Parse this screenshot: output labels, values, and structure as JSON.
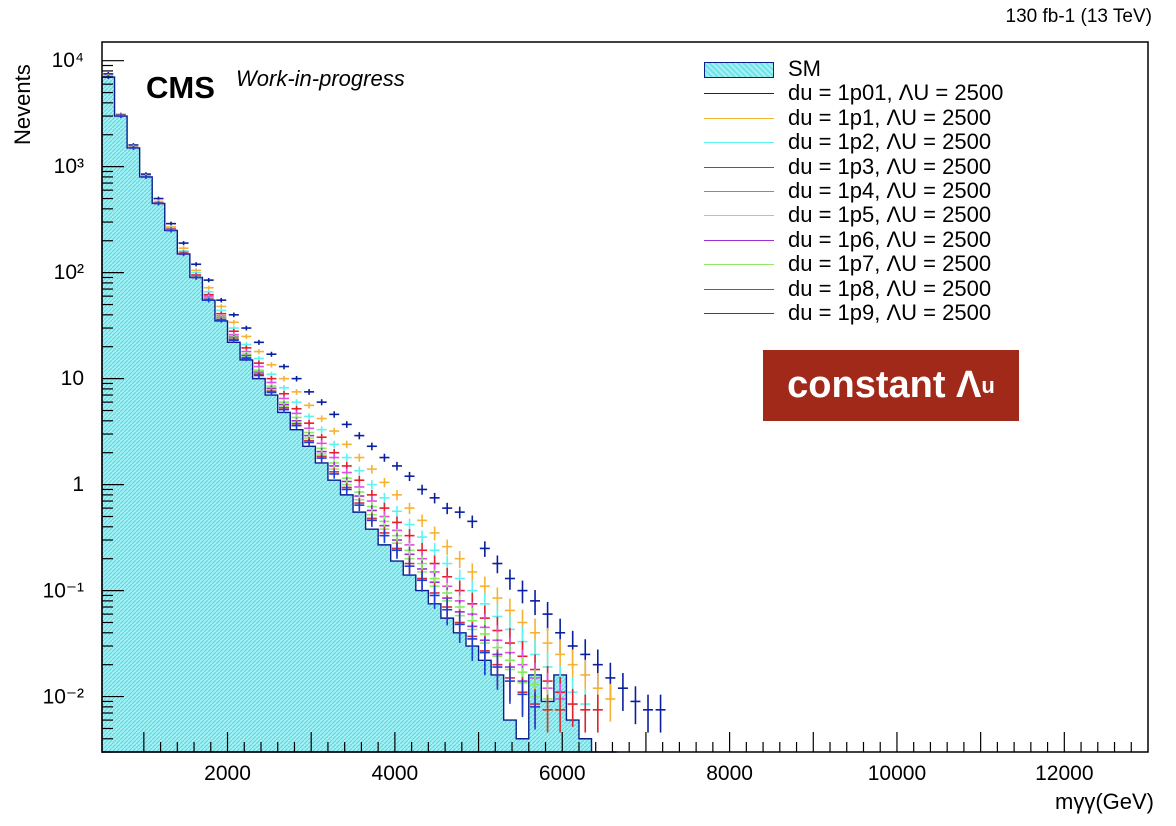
{
  "header": {
    "lumi": "130 fb-1 (13 TeV)",
    "cms": "CMS",
    "status": "Work-in-progress"
  },
  "badge": {
    "text": "constant Λ",
    "sub": "u"
  },
  "colors": {
    "sm_fill": "#7fe8ee",
    "sm_line": "#0a1f8f"
  },
  "chart_data": {
    "type": "line",
    "xlabel": "mγγ(GeV)",
    "ylabel": "Nevents",
    "xlim": [
      500,
      13000
    ],
    "ylim": [
      0.003,
      15000
    ],
    "yscale": "log",
    "grid": false,
    "legend_position": "top-right",
    "x_ticks": [
      "2000",
      "4000",
      "6000",
      "8000",
      "10000",
      "12000"
    ],
    "y_ticks": [
      "10⁴",
      "10³",
      "10²",
      "10",
      "1",
      "10⁻¹",
      "10⁻²"
    ],
    "sm": {
      "name": "SM",
      "bin_width": 150,
      "x_start": 500,
      "values": [
        7000,
        3000,
        1500,
        800,
        450,
        250,
        150,
        90,
        55,
        35,
        22,
        15,
        10,
        7,
        4.8,
        3.3,
        2.3,
        1.6,
        1.1,
        0.8,
        0.55,
        0.38,
        0.27,
        0.19,
        0.14,
        0.1,
        0.075,
        0.055,
        0.04,
        0.03,
        0.022,
        0.016,
        0.006,
        0.004,
        0.016,
        0.009,
        0.016,
        0.006,
        0.004,
        0.003,
        0.003
      ]
    },
    "series": [
      {
        "name": "du = 1p01, ΛU = 2500",
        "color": "#0a1fa0",
        "values": [
          7500,
          3100,
          1600,
          850,
          500,
          290,
          190,
          120,
          85,
          55,
          40,
          30,
          22,
          17,
          13,
          10,
          7.5,
          6,
          4.6,
          3.7,
          2.9,
          2.3,
          1.8,
          1.5,
          1.2,
          0.9,
          0.75,
          0.6,
          0.55,
          0.45,
          0.25,
          0.18,
          0.13,
          0.1,
          0.08,
          0.06,
          0.04,
          0.03,
          0.025,
          0.02,
          0.015,
          0.012,
          0.009,
          0.0075,
          0.0075
        ]
      },
      {
        "name": "du = 1p1, ΛU = 2500",
        "color": "#f5b335",
        "values": [
          7200,
          3050,
          1550,
          820,
          470,
          270,
          170,
          105,
          72,
          48,
          34,
          25,
          18,
          13.5,
          10,
          7.5,
          5.6,
          4.2,
          3.2,
          2.4,
          1.8,
          1.4,
          1.05,
          0.8,
          0.6,
          0.46,
          0.35,
          0.26,
          0.2,
          0.15,
          0.11,
          0.085,
          0.065,
          0.05,
          0.04,
          0.032,
          0.025,
          0.02,
          0.016,
          0.012,
          0.0095
        ]
      },
      {
        "name": "du = 1p2, ΛU = 2500",
        "color": "#5ff2f2",
        "values": [
          7100,
          3000,
          1530,
          810,
          460,
          262,
          160,
          100,
          66,
          44,
          30,
          21,
          15.5,
          11,
          8.2,
          6,
          4.4,
          3.3,
          2.4,
          1.8,
          1.35,
          1.0,
          0.75,
          0.56,
          0.42,
          0.32,
          0.24,
          0.18,
          0.13,
          0.1,
          0.075,
          0.057,
          0.043,
          0.033,
          0.025,
          0.019,
          0.014,
          0.011,
          0.0085
        ]
      },
      {
        "name": "du = 1p3, ΛU = 2500",
        "color": "#e2212a",
        "values": [
          7050,
          3000,
          1520,
          805,
          455,
          258,
          155,
          95,
          62,
          41,
          28,
          19.5,
          14,
          10,
          7.2,
          5.2,
          3.8,
          2.8,
          2.0,
          1.5,
          1.1,
          0.8,
          0.6,
          0.44,
          0.33,
          0.24,
          0.18,
          0.135,
          0.1,
          0.075,
          0.055,
          0.042,
          0.032,
          0.024,
          0.018,
          0.014,
          0.011,
          0.0085,
          0.0075,
          0.0075
        ]
      },
      {
        "name": "du = 1p4, ΛU = 2500",
        "color": "#e04de8",
        "values": [
          7020,
          3000,
          1515,
          802,
          452,
          255,
          152,
          92,
          60,
          39,
          26,
          18,
          13,
          9.2,
          6.5,
          4.7,
          3.4,
          2.45,
          1.8,
          1.3,
          0.95,
          0.7,
          0.5,
          0.37,
          0.27,
          0.2,
          0.15,
          0.11,
          0.08,
          0.06,
          0.045,
          0.034,
          0.026,
          0.02,
          0.015,
          0.012,
          0.0095
        ]
      },
      {
        "name": "du = 1p5, ΛU = 2500",
        "color": "#7ff05a",
        "values": [
          7010,
          3000,
          1512,
          801,
          451,
          254,
          151,
          91,
          58,
          38,
          25,
          17,
          12,
          8.5,
          6,
          4.3,
          3.1,
          2.2,
          1.6,
          1.15,
          0.85,
          0.62,
          0.45,
          0.33,
          0.24,
          0.18,
          0.13,
          0.095,
          0.07,
          0.052,
          0.039,
          0.029,
          0.022,
          0.017,
          0.013,
          0.0095,
          0.0075
        ]
      },
      {
        "name": "du = 1p6, ΛU = 2500",
        "color": "#9b2fd8",
        "values": [
          7005,
          3000,
          1510,
          800,
          450,
          253,
          150,
          90,
          57,
          37,
          24.5,
          16.5,
          11.5,
          8.1,
          5.7,
          4.0,
          2.9,
          2.05,
          1.5,
          1.07,
          0.78,
          0.57,
          0.41,
          0.3,
          0.22,
          0.16,
          0.12,
          0.085,
          0.063,
          0.046,
          0.034,
          0.025,
          0.019,
          0.014
        ]
      },
      {
        "name": "du = 1p7, ΛU = 2500",
        "color": "#92e86c",
        "values": [
          7003,
          3000,
          1508,
          800,
          450,
          252,
          150,
          90,
          56,
          36.5,
          24,
          16,
          11.2,
          7.8,
          5.5,
          3.9,
          2.75,
          1.95,
          1.4,
          1.0,
          0.72,
          0.52,
          0.38,
          0.28,
          0.2,
          0.15,
          0.11,
          0.08,
          0.058,
          0.043,
          0.032,
          0.024,
          0.018,
          0.0135,
          0.01,
          0.0075
        ]
      },
      {
        "name": "du = 1p8, ΛU = 2500",
        "color": "#d8303a",
        "values": [
          7002,
          3000,
          1506,
          800,
          450,
          251,
          150,
          90,
          55.5,
          36,
          23.5,
          15.7,
          11,
          7.6,
          5.3,
          3.75,
          2.6,
          1.85,
          1.32,
          0.94,
          0.67,
          0.48,
          0.35,
          0.25,
          0.18,
          0.13,
          0.095,
          0.07,
          0.05,
          0.037,
          0.027,
          0.02,
          0.015,
          0.011,
          0.0085,
          0.0075,
          0.0075
        ]
      },
      {
        "name": "du = 1p9, ΛU = 2500",
        "color": "#1d3fd6",
        "values": [
          7001,
          3000,
          1505,
          800,
          450,
          250,
          150,
          90,
          55,
          35.5,
          23,
          15.5,
          10.7,
          7.4,
          5.1,
          3.6,
          2.5,
          1.78,
          1.26,
          0.9,
          0.64,
          0.46,
          0.33,
          0.24,
          0.17,
          0.125,
          0.09,
          0.066,
          0.048,
          0.035,
          0.026,
          0.019,
          0.014,
          0.0105,
          0.008
        ]
      }
    ]
  }
}
